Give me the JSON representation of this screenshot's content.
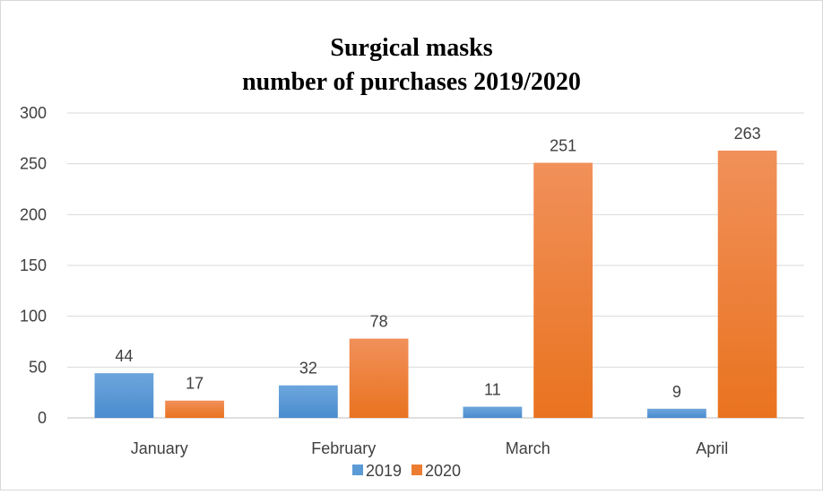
{
  "chart_data": {
    "type": "bar",
    "title_lines": [
      "Surgical masks",
      "number of purchases 2019/2020"
    ],
    "categories": [
      "January",
      "February",
      "March",
      "April"
    ],
    "series": [
      {
        "name": "2019",
        "values": [
          44,
          32,
          11,
          9
        ],
        "color": "#5b9bd5"
      },
      {
        "name": "2020",
        "values": [
          17,
          78,
          251,
          263
        ],
        "color": "#ed7d31"
      }
    ],
    "xlabel": "",
    "ylabel": "",
    "ylim": [
      0,
      300
    ],
    "yticks": [
      0,
      50,
      100,
      150,
      200,
      250,
      300
    ],
    "grid": true,
    "legend_position": "bottom"
  }
}
